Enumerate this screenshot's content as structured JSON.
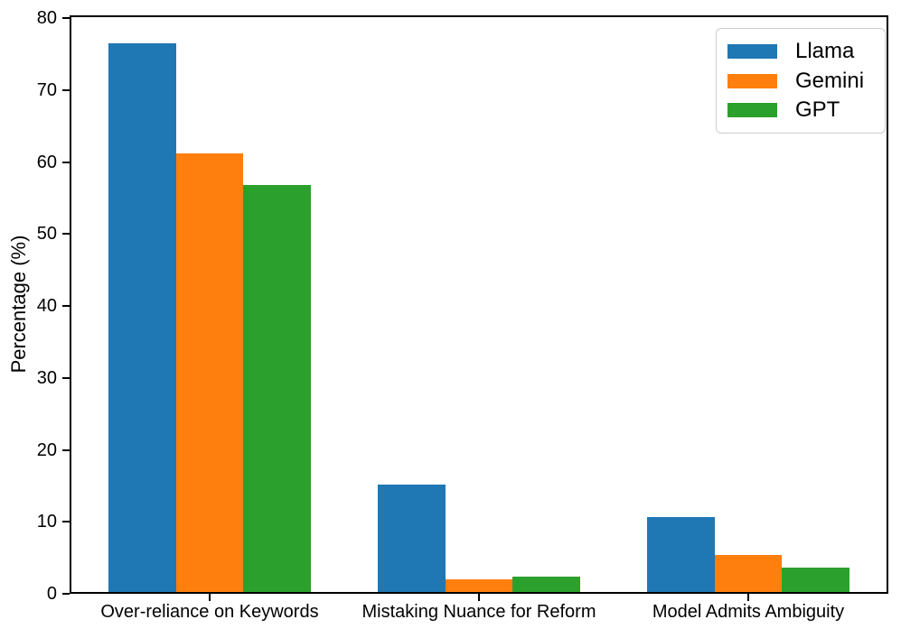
{
  "chart_data": {
    "type": "bar",
    "title": "",
    "xlabel": "",
    "ylabel": "Percentage (%)",
    "categories": [
      "Over-reliance on Keywords",
      "Mistaking Nuance for Reform",
      "Model Admits Ambiguity"
    ],
    "series": [
      {
        "name": "Llama",
        "color": "#1f77b4",
        "values": [
          76.5,
          15.2,
          10.6
        ]
      },
      {
        "name": "Gemini",
        "color": "#ff7f0e",
        "values": [
          61.2,
          2.0,
          5.4
        ]
      },
      {
        "name": "GPT",
        "color": "#2ca02c",
        "values": [
          56.8,
          2.4,
          3.6
        ]
      }
    ],
    "yticks": [
      0,
      10,
      20,
      30,
      40,
      50,
      60,
      70,
      80
    ],
    "ylim": [
      0,
      80.4
    ],
    "bar_width": 0.25,
    "grid": false,
    "legend_position": "upper right",
    "axis_color": "#000000",
    "background_color": "#ffffff"
  }
}
